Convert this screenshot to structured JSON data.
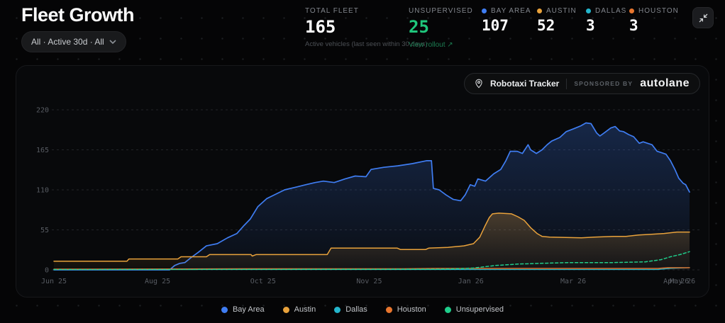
{
  "header": {
    "title": "Fleet Growth",
    "filter": {
      "label": "All · Active 30d · All"
    },
    "stats": {
      "total_fleet": {
        "label": "TOTAL FLEET",
        "value": "165",
        "subtext": "Active vehicles (last seen within 30 days)"
      },
      "unsupervised": {
        "label": "UNSUPERVISED",
        "value": "25",
        "link": "View rollout ↗",
        "color": "#1fc77c"
      },
      "cities": [
        {
          "label": "BAY AREA",
          "value": "107",
          "color": "#3f7df2"
        },
        {
          "label": "AUSTIN",
          "value": "52",
          "color": "#e9a23b"
        },
        {
          "label": "DALLAS",
          "value": "3",
          "color": "#24b6cc"
        },
        {
          "label": "HOUSTON",
          "value": "3",
          "color": "#e8762e"
        }
      ]
    }
  },
  "chart_card": {
    "badge": {
      "title": "Robotaxi Tracker",
      "sponsored_by": "SPONSORED BY",
      "sponsor": "autolane"
    }
  },
  "chart_data": {
    "type": "area",
    "title": "Fleet Growth",
    "ylim": [
      0,
      230
    ],
    "y_ticks": [
      0,
      55,
      110,
      165,
      220
    ],
    "grid": "horizontal-dashed",
    "legend_position": "bottom-center",
    "x_ticks": [
      {
        "f": 0.0,
        "label": "Jun 25"
      },
      {
        "f": 0.163,
        "label": "Aug 25"
      },
      {
        "f": 0.329,
        "label": "Oct 25"
      },
      {
        "f": 0.496,
        "label": "Nov 25"
      },
      {
        "f": 0.656,
        "label": "Jan 26"
      },
      {
        "f": 0.817,
        "label": "Mar 26"
      },
      {
        "f": 0.979,
        "label": "Apr 26"
      },
      {
        "f": 0.989,
        "label": "May 26"
      }
    ],
    "series": [
      {
        "name": "Bay Area",
        "color": "#3f7df2",
        "width": 1.7,
        "dash": null,
        "fill": true,
        "points": [
          [
            0,
            0
          ],
          [
            0.182,
            0
          ],
          [
            0.19,
            6
          ],
          [
            0.198,
            9
          ],
          [
            0.206,
            10
          ],
          [
            0.216,
            17
          ],
          [
            0.227,
            24
          ],
          [
            0.24,
            33
          ],
          [
            0.257,
            36
          ],
          [
            0.273,
            44
          ],
          [
            0.288,
            50
          ],
          [
            0.298,
            60
          ],
          [
            0.309,
            70
          ],
          [
            0.321,
            87
          ],
          [
            0.335,
            98
          ],
          [
            0.363,
            110
          ],
          [
            0.382,
            114
          ],
          [
            0.396,
            117
          ],
          [
            0.411,
            120
          ],
          [
            0.424,
            122
          ],
          [
            0.441,
            120
          ],
          [
            0.458,
            125
          ],
          [
            0.474,
            129
          ],
          [
            0.491,
            128
          ],
          [
            0.499,
            138
          ],
          [
            0.519,
            141
          ],
          [
            0.541,
            143
          ],
          [
            0.564,
            146
          ],
          [
            0.586,
            150
          ],
          [
            0.594,
            150
          ],
          [
            0.597,
            112
          ],
          [
            0.606,
            110
          ],
          [
            0.617,
            103
          ],
          [
            0.628,
            97
          ],
          [
            0.64,
            95
          ],
          [
            0.647,
            103
          ],
          [
            0.655,
            117
          ],
          [
            0.662,
            115
          ],
          [
            0.667,
            125
          ],
          [
            0.679,
            122
          ],
          [
            0.692,
            132
          ],
          [
            0.703,
            138
          ],
          [
            0.711,
            150
          ],
          [
            0.718,
            163
          ],
          [
            0.729,
            163
          ],
          [
            0.737,
            160
          ],
          [
            0.746,
            172
          ],
          [
            0.75,
            165
          ],
          [
            0.759,
            160
          ],
          [
            0.768,
            165
          ],
          [
            0.776,
            172
          ],
          [
            0.783,
            177
          ],
          [
            0.796,
            182
          ],
          [
            0.806,
            190
          ],
          [
            0.818,
            194
          ],
          [
            0.829,
            198
          ],
          [
            0.837,
            202
          ],
          [
            0.845,
            201
          ],
          [
            0.854,
            188
          ],
          [
            0.859,
            184
          ],
          [
            0.867,
            189
          ],
          [
            0.876,
            195
          ],
          [
            0.883,
            197
          ],
          [
            0.89,
            191
          ],
          [
            0.896,
            190
          ],
          [
            0.904,
            186
          ],
          [
            0.912,
            183
          ],
          [
            0.921,
            174
          ],
          [
            0.927,
            176
          ],
          [
            0.934,
            174
          ],
          [
            0.941,
            172
          ],
          [
            0.949,
            163
          ],
          [
            0.956,
            161
          ],
          [
            0.963,
            159
          ],
          [
            0.97,
            150
          ],
          [
            0.977,
            138
          ],
          [
            0.983,
            126
          ],
          [
            0.99,
            119
          ],
          [
            0.994,
            117
          ],
          [
            1,
            107
          ]
        ]
      },
      {
        "name": "Austin",
        "color": "#e9a23b",
        "width": 1.5,
        "dash": null,
        "fill": true,
        "points": [
          [
            0,
            12
          ],
          [
            0.115,
            12
          ],
          [
            0.118,
            15
          ],
          [
            0.195,
            15
          ],
          [
            0.2,
            18
          ],
          [
            0.24,
            18
          ],
          [
            0.245,
            21
          ],
          [
            0.31,
            21
          ],
          [
            0.312,
            19
          ],
          [
            0.318,
            21
          ],
          [
            0.43,
            21
          ],
          [
            0.436,
            30
          ],
          [
            0.54,
            30
          ],
          [
            0.545,
            28
          ],
          [
            0.585,
            28
          ],
          [
            0.59,
            30
          ],
          [
            0.62,
            31
          ],
          [
            0.645,
            33
          ],
          [
            0.66,
            36
          ],
          [
            0.67,
            45
          ],
          [
            0.678,
            60
          ],
          [
            0.685,
            72
          ],
          [
            0.69,
            77
          ],
          [
            0.7,
            78
          ],
          [
            0.72,
            77
          ],
          [
            0.73,
            73
          ],
          [
            0.74,
            68
          ],
          [
            0.75,
            58
          ],
          [
            0.76,
            50
          ],
          [
            0.768,
            46
          ],
          [
            0.78,
            45
          ],
          [
            0.83,
            44
          ],
          [
            0.85,
            45
          ],
          [
            0.88,
            46
          ],
          [
            0.9,
            46
          ],
          [
            0.92,
            48
          ],
          [
            0.94,
            49
          ],
          [
            0.96,
            50
          ],
          [
            0.98,
            52
          ],
          [
            1,
            52
          ]
        ]
      },
      {
        "name": "Dallas",
        "color": "#24b6cc",
        "width": 1.3,
        "dash": null,
        "fill": false,
        "points": [
          [
            0,
            0.5
          ],
          [
            0.95,
            0.5
          ],
          [
            0.97,
            2
          ],
          [
            1,
            3
          ]
        ]
      },
      {
        "name": "Houston",
        "color": "#e8762e",
        "width": 1.4,
        "dash": null,
        "fill": false,
        "points": [
          [
            0,
            1
          ],
          [
            0.3,
            1.5
          ],
          [
            0.55,
            1.5
          ],
          [
            0.6,
            2
          ],
          [
            0.95,
            2
          ],
          [
            0.965,
            3
          ],
          [
            1,
            3
          ]
        ]
      },
      {
        "name": "Unsupervised",
        "color": "#1fce8b",
        "width": 1.5,
        "dash": "4 3",
        "fill": false,
        "points": [
          [
            0,
            0.5
          ],
          [
            0.6,
            1
          ],
          [
            0.63,
            1.5
          ],
          [
            0.66,
            2.5
          ],
          [
            0.695,
            6
          ],
          [
            0.73,
            8
          ],
          [
            0.765,
            9
          ],
          [
            0.81,
            10
          ],
          [
            0.88,
            10
          ],
          [
            0.93,
            11
          ],
          [
            0.955,
            14
          ],
          [
            0.97,
            18
          ],
          [
            0.985,
            21
          ],
          [
            1,
            25
          ]
        ]
      }
    ]
  }
}
